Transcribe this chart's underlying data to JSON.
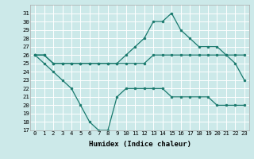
{
  "xlabel": "Humidex (Indice chaleur)",
  "ylabel": "",
  "bg_color": "#cce9e9",
  "grid_color": "#ffffff",
  "line_color": "#1a7a6e",
  "xlim": [
    -0.5,
    23.5
  ],
  "ylim": [
    17,
    32
  ],
  "yticks": [
    17,
    18,
    19,
    20,
    21,
    22,
    23,
    24,
    25,
    26,
    27,
    28,
    29,
    30,
    31
  ],
  "xticks": [
    0,
    1,
    2,
    3,
    4,
    5,
    6,
    7,
    8,
    9,
    10,
    11,
    12,
    13,
    14,
    15,
    16,
    17,
    18,
    19,
    20,
    21,
    22,
    23
  ],
  "series_max": [
    26,
    26,
    25,
    25,
    25,
    25,
    25,
    25,
    25,
    25,
    26,
    27,
    28,
    30,
    30,
    31,
    29,
    28,
    27,
    27,
    27,
    26,
    25,
    23
  ],
  "series_mean": [
    26,
    26,
    25,
    25,
    25,
    25,
    25,
    25,
    25,
    25,
    25,
    25,
    25,
    26,
    26,
    26,
    26,
    26,
    26,
    26,
    26,
    26,
    26,
    26
  ],
  "series_min": [
    26,
    25,
    24,
    23,
    22,
    20,
    18,
    17,
    17,
    21,
    22,
    22,
    22,
    22,
    22,
    21,
    21,
    21,
    21,
    21,
    20,
    20,
    20,
    20
  ]
}
